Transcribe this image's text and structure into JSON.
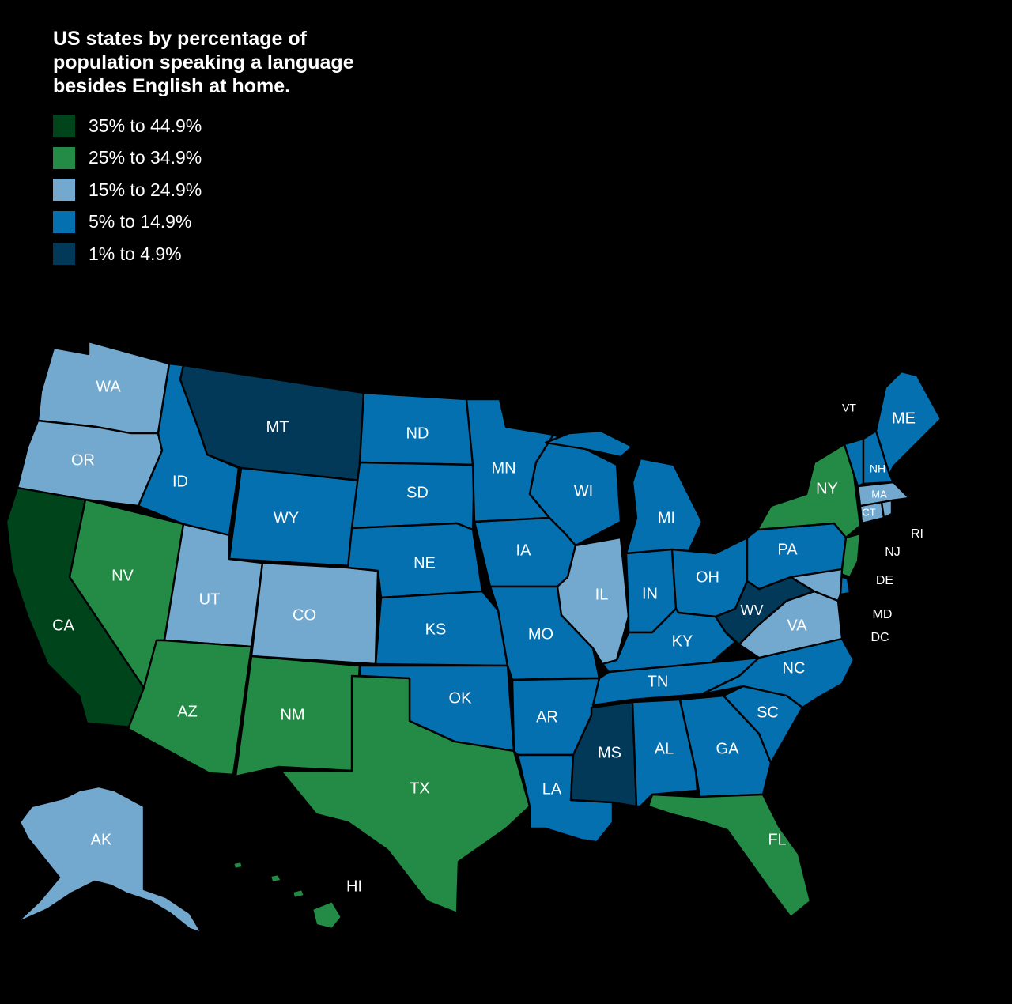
{
  "title": "US states by percentage of population speaking a language besides English at home.",
  "colors": {
    "c35": "#00441b",
    "c25": "#238b45",
    "c15": "#74a9cf",
    "c5": "#0570b0",
    "c1": "#023858",
    "background": "#000000"
  },
  "legend": [
    {
      "label": "35% to 44.9%",
      "color": "#00441b"
    },
    {
      "label": "25% to 34.9%",
      "color": "#238b45"
    },
    {
      "label": "15% to 24.9%",
      "color": "#74a9cf"
    },
    {
      "label": "5% to 14.9%",
      "color": "#0570b0"
    },
    {
      "label": "1% to 4.9%",
      "color": "#023858"
    }
  ],
  "states": [
    {
      "code": "WA",
      "class": "15% to 24.9%"
    },
    {
      "code": "OR",
      "class": "15% to 24.9%"
    },
    {
      "code": "CA",
      "class": "35% to 44.9%"
    },
    {
      "code": "NV",
      "class": "25% to 34.9%"
    },
    {
      "code": "ID",
      "class": "5% to 14.9%"
    },
    {
      "code": "MT",
      "class": "1% to 4.9%"
    },
    {
      "code": "WY",
      "class": "5% to 14.9%"
    },
    {
      "code": "UT",
      "class": "15% to 24.9%"
    },
    {
      "code": "CO",
      "class": "15% to 24.9%"
    },
    {
      "code": "AZ",
      "class": "25% to 34.9%"
    },
    {
      "code": "NM",
      "class": "25% to 34.9%"
    },
    {
      "code": "ND",
      "class": "5% to 14.9%"
    },
    {
      "code": "SD",
      "class": "5% to 14.9%"
    },
    {
      "code": "NE",
      "class": "5% to 14.9%"
    },
    {
      "code": "KS",
      "class": "5% to 14.9%"
    },
    {
      "code": "OK",
      "class": "5% to 14.9%"
    },
    {
      "code": "TX",
      "class": "25% to 34.9%"
    },
    {
      "code": "MN",
      "class": "5% to 14.9%"
    },
    {
      "code": "IA",
      "class": "5% to 14.9%"
    },
    {
      "code": "MO",
      "class": "5% to 14.9%"
    },
    {
      "code": "AR",
      "class": "5% to 14.9%"
    },
    {
      "code": "LA",
      "class": "5% to 14.9%"
    },
    {
      "code": "WI",
      "class": "5% to 14.9%"
    },
    {
      "code": "IL",
      "class": "15% to 24.9%"
    },
    {
      "code": "MI",
      "class": "5% to 14.9%"
    },
    {
      "code": "IN",
      "class": "5% to 14.9%"
    },
    {
      "code": "OH",
      "class": "5% to 14.9%"
    },
    {
      "code": "KY",
      "class": "5% to 14.9%"
    },
    {
      "code": "TN",
      "class": "5% to 14.9%"
    },
    {
      "code": "MS",
      "class": "1% to 4.9%"
    },
    {
      "code": "AL",
      "class": "5% to 14.9%"
    },
    {
      "code": "GA",
      "class": "5% to 14.9%"
    },
    {
      "code": "FL",
      "class": "25% to 34.9%"
    },
    {
      "code": "SC",
      "class": "5% to 14.9%"
    },
    {
      "code": "NC",
      "class": "5% to 14.9%"
    },
    {
      "code": "VA",
      "class": "15% to 24.9%"
    },
    {
      "code": "WV",
      "class": "1% to 4.9%"
    },
    {
      "code": "PA",
      "class": "5% to 14.9%"
    },
    {
      "code": "NY",
      "class": "25% to 34.9%"
    },
    {
      "code": "NJ",
      "class": "25% to 34.9%"
    },
    {
      "code": "DE",
      "class": "5% to 14.9%"
    },
    {
      "code": "MD",
      "class": "15% to 24.9%"
    },
    {
      "code": "DC",
      "class": "5% to 14.9%"
    },
    {
      "code": "CT",
      "class": "15% to 24.9%"
    },
    {
      "code": "RI",
      "class": "15% to 24.9%"
    },
    {
      "code": "MA",
      "class": "15% to 24.9%"
    },
    {
      "code": "VT",
      "class": "5% to 14.9%"
    },
    {
      "code": "NH",
      "class": "5% to 14.9%"
    },
    {
      "code": "ME",
      "class": "5% to 14.9%"
    },
    {
      "code": "AK",
      "class": "15% to 24.9%"
    },
    {
      "code": "HI",
      "class": "25% to 34.9%"
    }
  ]
}
